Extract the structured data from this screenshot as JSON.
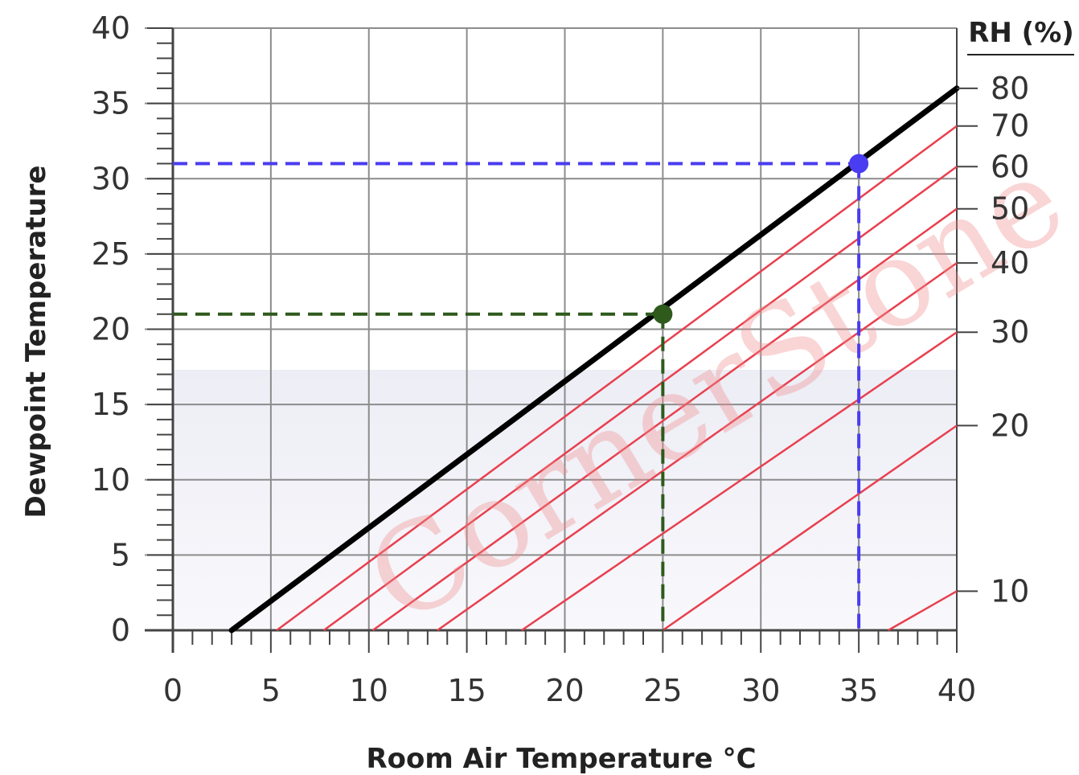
{
  "chart_data": {
    "type": "line",
    "title": "",
    "xlabel": "Room Air Temperature °C",
    "ylabel": "Dewpoint Temperature",
    "xlim": [
      0,
      40
    ],
    "ylim": [
      0,
      40
    ],
    "x_ticks": [
      "0",
      "5",
      "10",
      "15",
      "20",
      "25",
      "30",
      "35",
      "40"
    ],
    "y_ticks": [
      "0",
      "5",
      "10",
      "15",
      "20",
      "25",
      "30",
      "35",
      "40"
    ],
    "grid": true,
    "secondary_axis": {
      "title": "RH (%)",
      "labels": [
        "80",
        "70",
        "60",
        "50",
        "40",
        "30",
        "20",
        "10"
      ]
    },
    "saturation_line": {
      "name": "",
      "color": "#000000",
      "points": [
        [
          3,
          0
        ],
        [
          40,
          36
        ]
      ]
    },
    "rh_lines": [
      {
        "rh": 80,
        "points": [
          [
            5.3,
            0
          ],
          [
            40,
            33.5
          ]
        ]
      },
      {
        "rh": 70,
        "points": [
          [
            7.7,
            0
          ],
          [
            40,
            30.8
          ]
        ]
      },
      {
        "rh": 60,
        "points": [
          [
            10.2,
            0
          ],
          [
            40,
            28.0
          ]
        ]
      },
      {
        "rh": 50,
        "points": [
          [
            13.5,
            0
          ],
          [
            40,
            24.4
          ]
        ]
      },
      {
        "rh": 40,
        "points": [
          [
            17.8,
            0
          ],
          [
            40,
            19.8
          ]
        ]
      },
      {
        "rh": 30,
        "points": [
          [
            25.0,
            0
          ],
          [
            40,
            13.6
          ]
        ]
      },
      {
        "rh": 20,
        "points": [
          [
            36.5,
            0
          ],
          [
            40,
            2.6
          ]
        ]
      }
    ],
    "rh_color": "#e8404f",
    "examples": [
      {
        "x": 25,
        "y": 21,
        "color": "#2e5a1c"
      },
      {
        "x": 35,
        "y": 31,
        "color": "#4a3cf0"
      }
    ],
    "watermark": "CornerStone"
  }
}
